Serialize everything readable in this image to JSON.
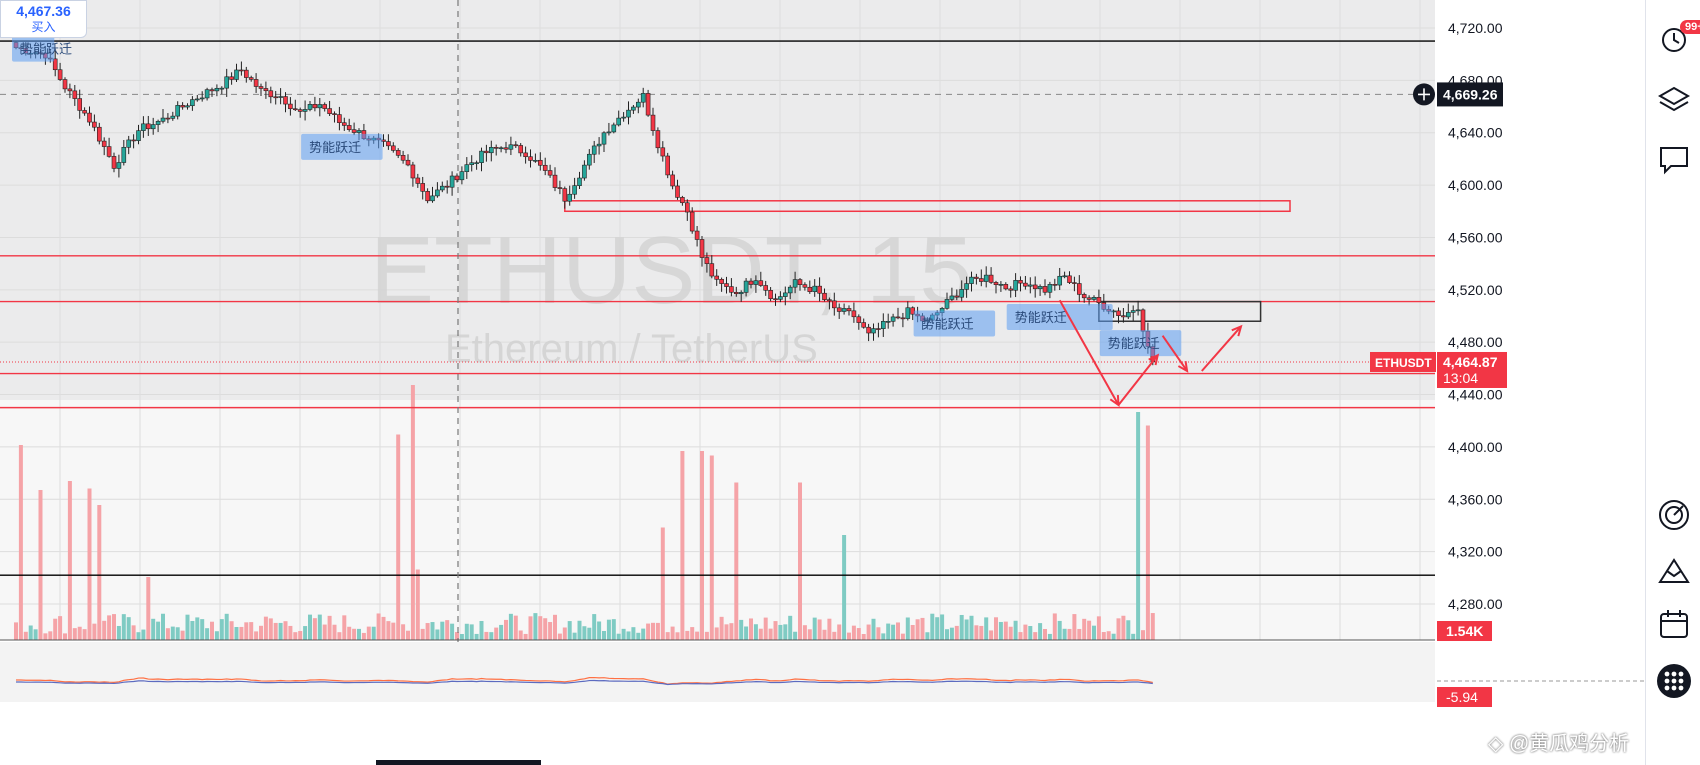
{
  "chart_data": {
    "type": "candlestick",
    "symbol": "ETHUSDT",
    "watermark_symbol": "ETHUSDT, 15",
    "watermark_name": "Ethereum / TetherUS",
    "ylim": [
      4250,
      4740
    ],
    "y_ticks": [
      "4,720.00",
      "4,680.00",
      "4,640.00",
      "4,600.00",
      "4,560.00",
      "4,520.00",
      "4,480.00",
      "4,440.00",
      "4,400.00",
      "4,360.00",
      "4,320.00",
      "4,280.00"
    ],
    "y_tick_values": [
      4720,
      4680,
      4640,
      4600,
      4560,
      4520,
      4480,
      4440,
      4400,
      4360,
      4320,
      4280
    ],
    "crosshair_price": "4,669.26",
    "crosshair_value": 4669.26,
    "last_price": "4,464.87",
    "last_value": 4464.87,
    "countdown": "13:04",
    "volume_label": "1.54K",
    "indicator_value": "-5.94",
    "top_badge_price": "4,467.36",
    "top_badge_label": "买入",
    "pattern_label": "势能跃迁",
    "h_lines": [
      {
        "value": 4710,
        "color": "#000000"
      },
      {
        "value": 4546,
        "color": "#f23645"
      },
      {
        "value": 4511,
        "color": "#f23645"
      },
      {
        "value": 4456,
        "color": "#f23645"
      },
      {
        "value": 4430,
        "color": "#f23645"
      },
      {
        "value": 4302,
        "color": "#000000"
      }
    ],
    "zones": [
      {
        "from_index": 112,
        "to_index": 260,
        "low": 4580,
        "high": 4588,
        "color": "#f23645"
      },
      {
        "from_index": 221,
        "to_index": 254,
        "low": 4496,
        "high": 4511,
        "color": "#333333"
      }
    ],
    "boxes": [
      {
        "index": 0,
        "price": 4705,
        "w_bars": 7
      },
      {
        "index": 59,
        "price": 4630,
        "w_bars": 15
      },
      {
        "index": 184,
        "price": 4495,
        "w_bars": 15
      },
      {
        "index": 203,
        "price": 4500,
        "w_bars": 20
      },
      {
        "index": 222,
        "price": 4480,
        "w_bars": 15
      }
    ],
    "key_points": [
      [
        0,
        4705
      ],
      [
        6,
        4700
      ],
      [
        10,
        4675
      ],
      [
        15,
        4650
      ],
      [
        20,
        4615
      ],
      [
        25,
        4642
      ],
      [
        30,
        4650
      ],
      [
        36,
        4665
      ],
      [
        42,
        4677
      ],
      [
        46,
        4688
      ],
      [
        50,
        4672
      ],
      [
        54,
        4668
      ],
      [
        58,
        4655
      ],
      [
        62,
        4662
      ],
      [
        66,
        4648
      ],
      [
        70,
        4640
      ],
      [
        75,
        4630
      ],
      [
        80,
        4615
      ],
      [
        84,
        4590
      ],
      [
        88,
        4600
      ],
      [
        92,
        4615
      ],
      [
        96,
        4625
      ],
      [
        100,
        4630
      ],
      [
        104,
        4625
      ],
      [
        108,
        4610
      ],
      [
        112,
        4590
      ],
      [
        116,
        4615
      ],
      [
        120,
        4640
      ],
      [
        124,
        4655
      ],
      [
        128,
        4668
      ],
      [
        131,
        4632
      ],
      [
        134,
        4600
      ],
      [
        137,
        4580
      ],
      [
        140,
        4545
      ],
      [
        143,
        4525
      ],
      [
        147,
        4518
      ],
      [
        151,
        4530
      ],
      [
        155,
        4512
      ],
      [
        159,
        4525
      ],
      [
        163,
        4520
      ],
      [
        167,
        4505
      ],
      [
        171,
        4500
      ],
      [
        174,
        4485
      ],
      [
        178,
        4495
      ],
      [
        182,
        4503
      ],
      [
        186,
        4495
      ],
      [
        190,
        4510
      ],
      [
        194,
        4525
      ],
      [
        198,
        4530
      ],
      [
        202,
        4522
      ],
      [
        206,
        4526
      ],
      [
        210,
        4520
      ],
      [
        214,
        4530
      ],
      [
        218,
        4515
      ],
      [
        222,
        4508
      ],
      [
        226,
        4500
      ],
      [
        229,
        4508
      ],
      [
        231,
        4475
      ],
      [
        232,
        4465
      ]
    ],
    "volume_scale_max": 2000,
    "volume_spikes": [
      [
        1,
        1300
      ],
      [
        5,
        1000
      ],
      [
        11,
        1060
      ],
      [
        15,
        1010
      ],
      [
        17,
        900
      ],
      [
        27,
        420
      ],
      [
        78,
        1370
      ],
      [
        81,
        1700
      ],
      [
        82,
        470
      ],
      [
        132,
        750
      ],
      [
        136,
        1260
      ],
      [
        140,
        1260
      ],
      [
        142,
        1230
      ],
      [
        147,
        1050
      ],
      [
        160,
        1050
      ],
      [
        169,
        700
      ],
      [
        229,
        1520
      ],
      [
        231,
        1430
      ]
    ],
    "arrows": [
      {
        "from": [
          213,
          4512
        ],
        "to": [
          225,
          4432
        ]
      },
      {
        "from": [
          225,
          4432
        ],
        "to": [
          233,
          4470
        ]
      },
      {
        "from": [
          234,
          4485
        ],
        "to": [
          239,
          4458
        ]
      },
      {
        "from": [
          242,
          4458
        ],
        "to": [
          250,
          4492
        ]
      }
    ],
    "colors": {
      "up": "#26a69a",
      "down": "#f23645",
      "vol_up": "#7fcbc3",
      "vol_down": "#f5a3a7"
    }
  },
  "toolbar": {
    "notification_count": "99+",
    "icons": [
      "alarm-clock-icon",
      "layers-icon",
      "chat-icon",
      "target-icon",
      "mountain-icon",
      "calendar-icon",
      "apps-icon"
    ]
  }
}
